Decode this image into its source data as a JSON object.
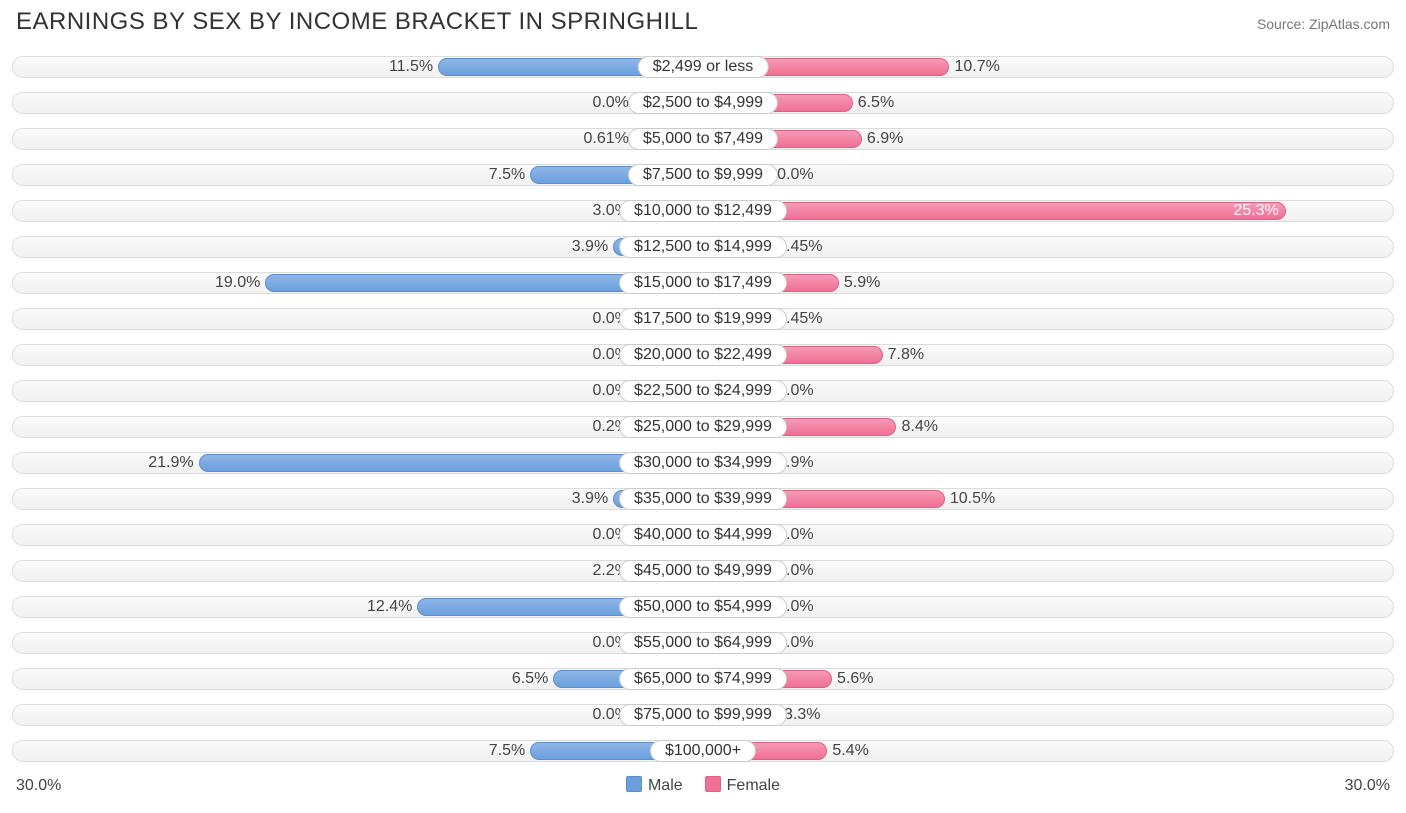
{
  "title": "EARNINGS BY SEX BY INCOME BRACKET IN SPRINGHILL",
  "source": "Source: ZipAtlas.com",
  "axis_max_label": "30.0%",
  "axis_max_value": 30.0,
  "min_bar_percent": 3.0,
  "label_inside_threshold": 24.0,
  "colors": {
    "male_fill_top": "#8fb7e6",
    "male_fill_bottom": "#6b9fde",
    "male_border": "#5a8fce",
    "female_fill_top": "#f59bb6",
    "female_fill_bottom": "#ef6f95",
    "female_border": "#e45f87",
    "track_border": "#dcdcdc",
    "pill_border": "#cccccc",
    "text": "#333333",
    "background": "#ffffff"
  },
  "legend": {
    "male": "Male",
    "female": "Female"
  },
  "rows": [
    {
      "category": "$2,499 or less",
      "male": 11.5,
      "female": 10.7
    },
    {
      "category": "$2,500 to $4,999",
      "male": 0.0,
      "female": 6.5
    },
    {
      "category": "$5,000 to $7,499",
      "male": 0.61,
      "female": 6.9
    },
    {
      "category": "$7,500 to $9,999",
      "male": 7.5,
      "female": 0.0
    },
    {
      "category": "$10,000 to $12,499",
      "male": 3.0,
      "female": 25.3
    },
    {
      "category": "$12,500 to $14,999",
      "male": 3.9,
      "female": 0.45
    },
    {
      "category": "$15,000 to $17,499",
      "male": 19.0,
      "female": 5.9
    },
    {
      "category": "$17,500 to $19,999",
      "male": 0.0,
      "female": 0.45
    },
    {
      "category": "$20,000 to $22,499",
      "male": 0.0,
      "female": 7.8
    },
    {
      "category": "$22,500 to $24,999",
      "male": 0.0,
      "female": 0.0
    },
    {
      "category": "$25,000 to $29,999",
      "male": 0.2,
      "female": 8.4
    },
    {
      "category": "$30,000 to $34,999",
      "male": 21.9,
      "female": 0.9
    },
    {
      "category": "$35,000 to $39,999",
      "male": 3.9,
      "female": 10.5
    },
    {
      "category": "$40,000 to $44,999",
      "male": 0.0,
      "female": 0.0
    },
    {
      "category": "$45,000 to $49,999",
      "male": 2.2,
      "female": 0.0
    },
    {
      "category": "$50,000 to $54,999",
      "male": 12.4,
      "female": 2.0
    },
    {
      "category": "$55,000 to $64,999",
      "male": 0.0,
      "female": 0.0
    },
    {
      "category": "$65,000 to $74,999",
      "male": 6.5,
      "female": 5.6
    },
    {
      "category": "$75,000 to $99,999",
      "male": 0.0,
      "female": 3.3
    },
    {
      "category": "$100,000+",
      "male": 7.5,
      "female": 5.4
    }
  ]
}
